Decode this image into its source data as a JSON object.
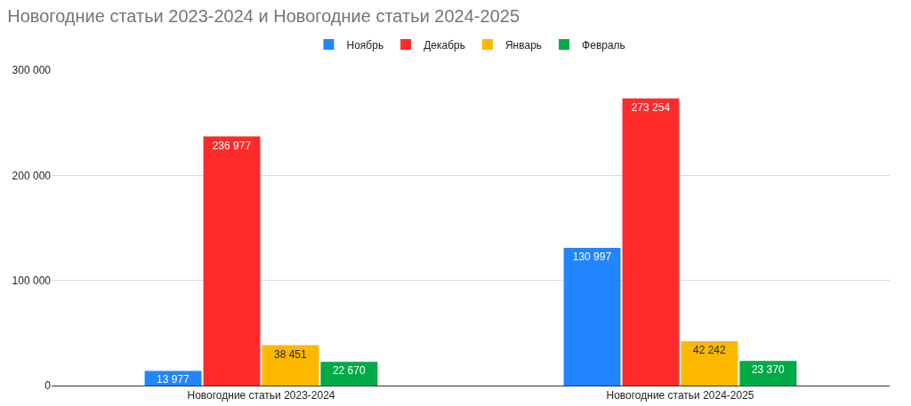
{
  "chart_data": {
    "type": "bar",
    "title": "Новогодние статьи 2023-2024 и Новогодние статьи 2024-2025",
    "categories": [
      "Новогодние статьи 2023-2024",
      "Новогодние статьи 2024-2025"
    ],
    "series": [
      {
        "name": "Ноябрь",
        "color": "#2185ff",
        "values": [
          13977,
          130997
        ],
        "value_labels": [
          "13 977",
          "130 997"
        ]
      },
      {
        "name": "Декабрь",
        "color": "#ff2b2b",
        "values": [
          236977,
          273254
        ],
        "value_labels": [
          "236 977",
          "273 254"
        ]
      },
      {
        "name": "Январь",
        "color": "#ffb800",
        "values": [
          38451,
          42242
        ],
        "value_labels": [
          "38 451",
          "42 242"
        ]
      },
      {
        "name": "Февраль",
        "color": "#00aa47",
        "values": [
          22670,
          23370
        ],
        "value_labels": [
          "22 670",
          "23 370"
        ]
      }
    ],
    "ylim": [
      0,
      300000
    ],
    "yticks": [
      {
        "value": 0,
        "label": "0"
      },
      {
        "value": 100000,
        "label": "100 000"
      },
      {
        "value": 200000,
        "label": "200 000"
      },
      {
        "value": 300000,
        "label": "300 000"
      }
    ],
    "grid": "y",
    "legend": "top"
  }
}
